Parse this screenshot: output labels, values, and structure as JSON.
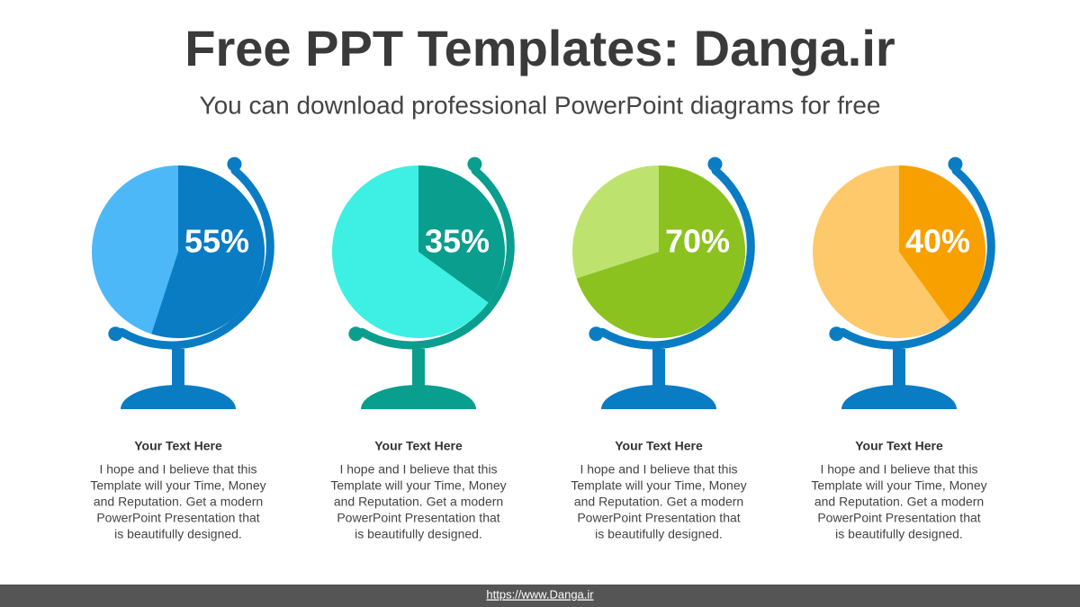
{
  "header": {
    "title": "Free PPT Templates: Danga.ir",
    "subtitle": "You can download professional PowerPoint diagrams for free"
  },
  "chart_data": [
    {
      "type": "pie",
      "values": [
        55
      ],
      "value_labels": [
        "55%"
      ],
      "color": "#0a7cc4",
      "background_color": "#4db8f7",
      "stand_color": "#0a7cc4",
      "heading": "Your Text Here",
      "text": [
        "I hope and I believe that this",
        "Template will your Time, Money",
        "and Reputation. Get a modern",
        "PowerPoint  Presentation that",
        "is beautifully designed."
      ]
    },
    {
      "type": "pie",
      "values": [
        35
      ],
      "value_labels": [
        "35%"
      ],
      "color": "#0a9e8e",
      "background_color": "#3ef0e4",
      "stand_color": "#0a9e8e",
      "heading": "Your Text Here",
      "text": [
        "I hope and I believe that this",
        "Template will your Time, Money",
        "and Reputation. Get a modern",
        "PowerPoint  Presentation that",
        "is beautifully designed."
      ]
    },
    {
      "type": "pie",
      "values": [
        70
      ],
      "value_labels": [
        "70%"
      ],
      "color": "#8cc21f",
      "background_color": "#bde36e",
      "stand_color": "#0a7cc4",
      "heading": "Your Text Here",
      "text": [
        "I hope and I believe that this",
        "Template will your Time, Money",
        "and Reputation. Get a modern",
        "PowerPoint  Presentation that",
        "is beautifully designed."
      ]
    },
    {
      "type": "pie",
      "values": [
        40
      ],
      "value_labels": [
        "40%"
      ],
      "color": "#f7a000",
      "background_color": "#fdc96a",
      "stand_color": "#0a7cc4",
      "heading": "Your Text Here",
      "text": [
        "I hope and I believe that this",
        "Template will your Time, Money",
        "and Reputation. Get a modern",
        "PowerPoint  Presentation that",
        "is beautifully designed."
      ]
    }
  ],
  "footer": {
    "link": "https://www.Danga.ir"
  }
}
